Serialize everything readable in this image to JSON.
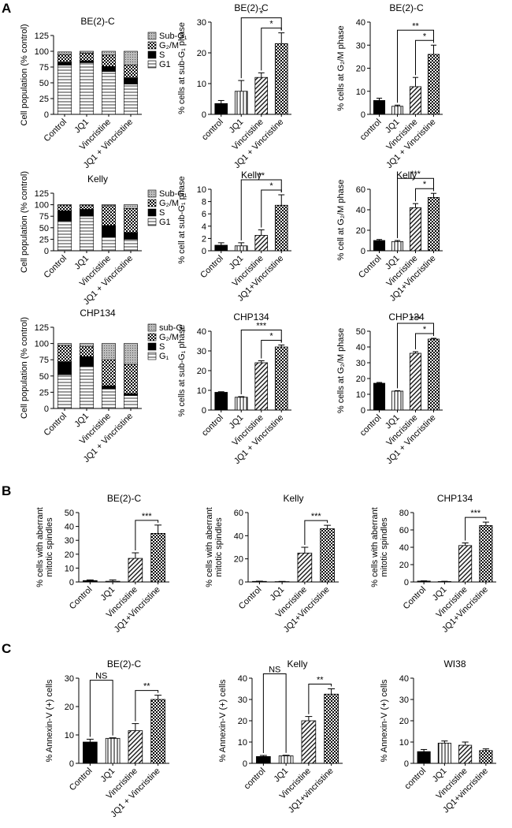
{
  "panel_labels": [
    "A",
    "B",
    "C"
  ],
  "chart_data": [
    {
      "type": "stacked_bar",
      "title": "BE(2)-C",
      "ylabel": [
        "Cell population (% control)"
      ],
      "categories": [
        "Control",
        "JQ1",
        "Vincristine",
        "JQ1 + Vincristine"
      ],
      "series": [
        {
          "name": "G1",
          "values": [
            78,
            82,
            68,
            48
          ]
        },
        {
          "name": "S",
          "values": [
            5,
            3,
            8,
            10
          ]
        },
        {
          "name": "G₂/M",
          "values": [
            12,
            12,
            18,
            20
          ]
        },
        {
          "name": "Sub-G₁",
          "values": [
            4,
            3,
            6,
            22
          ]
        }
      ],
      "ylim": [
        0,
        125
      ],
      "yticks": [
        0,
        25,
        50,
        75,
        100,
        125
      ]
    },
    {
      "type": "bar",
      "title": "BE(2)-C",
      "ylabel": [
        "% cells at sub-G₁ phase"
      ],
      "categories": [
        "control",
        "JQ1",
        "Vincristine",
        "JQ1 + Vincristine"
      ],
      "values": [
        3.5,
        7.5,
        12,
        23
      ],
      "errors": [
        1,
        3.5,
        1.5,
        3.5
      ],
      "ylim": [
        0,
        30
      ],
      "yticks": [
        0,
        10,
        20,
        30
      ],
      "annotations": [
        {
          "label": "*",
          "between": [
            "JQ1",
            "JQ1 + Vincristine"
          ]
        },
        {
          "label": "*",
          "between": [
            "Vincristine",
            "JQ1 + Vincristine"
          ]
        }
      ]
    },
    {
      "type": "bar",
      "title": "BE(2)-C",
      "ylabel": [
        "% cells at G₂/M phase"
      ],
      "categories": [
        "control",
        "JQ1",
        "Vincristine",
        "JQ1 + Vincristine"
      ],
      "values": [
        6,
        3.5,
        12,
        26
      ],
      "errors": [
        1,
        0.5,
        4,
        4
      ],
      "ylim": [
        0,
        40
      ],
      "yticks": [
        0,
        10,
        20,
        30,
        40
      ],
      "annotations": [
        {
          "label": "**",
          "between": [
            "JQ1",
            "JQ1 + Vincristine"
          ]
        },
        {
          "label": "*",
          "between": [
            "Vincristine",
            "JQ1 + Vincristine"
          ]
        }
      ]
    },
    {
      "type": "stacked_bar",
      "title": "Kelly",
      "ylabel": [
        "Cell population (% control)"
      ],
      "categories": [
        "Control",
        "JQ1",
        "Vincristine",
        "JQ1 + Vincristine"
      ],
      "series": [
        {
          "name": "G1",
          "values": [
            65,
            75,
            30,
            25
          ]
        },
        {
          "name": "S",
          "values": [
            22,
            15,
            25,
            15
          ]
        },
        {
          "name": "G₂/M",
          "values": [
            12,
            9,
            43,
            52
          ]
        },
        {
          "name": "Sub-G₁",
          "values": [
            1,
            1,
            2,
            8
          ]
        }
      ],
      "ylim": [
        0,
        125
      ],
      "yticks": [
        0,
        25,
        50,
        75,
        100,
        125
      ]
    },
    {
      "type": "bar",
      "title": "Kelly",
      "ylabel": [
        "% cell at sub-G₁ phase"
      ],
      "categories": [
        "Control",
        "JQ1",
        "Vincristine",
        "JQ1+Vincristine"
      ],
      "values": [
        0.9,
        0.8,
        2.5,
        7.4
      ],
      "errors": [
        0.4,
        0.5,
        0.9,
        1.7
      ],
      "ylim": [
        0,
        10
      ],
      "yticks": [
        0,
        2,
        4,
        6,
        8,
        10
      ],
      "annotations": [
        {
          "label": "**",
          "between": [
            "JQ1",
            "JQ1+Vincristine"
          ]
        },
        {
          "label": "*",
          "between": [
            "Vincristine",
            "JQ1+Vincristine"
          ]
        }
      ]
    },
    {
      "type": "bar",
      "title": "Kelly",
      "ylabel": [
        "% cell at G₂/M phase"
      ],
      "categories": [
        "Control",
        "JQ1",
        "Vincristine",
        "JQ1+Vincristine"
      ],
      "values": [
        10,
        9,
        42,
        52
      ],
      "errors": [
        1,
        1,
        4,
        4
      ],
      "ylim": [
        0,
        60
      ],
      "yticks": [
        0,
        20,
        40,
        60
      ],
      "annotations": [
        {
          "label": "***",
          "between": [
            "JQ1",
            "JQ1+Vincristine"
          ]
        },
        {
          "label": "*",
          "between": [
            "Vincristine",
            "JQ1+Vincristine"
          ]
        }
      ]
    },
    {
      "type": "stacked_bar",
      "title": "CHP134",
      "ylabel": [
        "Cell population (% control)"
      ],
      "categories": [
        "Control",
        "JQ1",
        "Vincristine",
        "JQ1 + Vincristine"
      ],
      "series": [
        {
          "name": "G₁",
          "values": [
            52,
            65,
            30,
            20
          ]
        },
        {
          "name": "S",
          "values": [
            20,
            15,
            5,
            3
          ]
        },
        {
          "name": "G₂/M",
          "values": [
            25,
            15,
            40,
            45
          ]
        },
        {
          "name": "sub-G₁",
          "values": [
            3,
            5,
            25,
            32
          ]
        }
      ],
      "ylim": [
        0,
        125
      ],
      "yticks": [
        0,
        25,
        50,
        75,
        100,
        125
      ]
    },
    {
      "type": "bar",
      "title": "CHP134",
      "ylabel": [
        "% cells at sub-G₁ phase"
      ],
      "categories": [
        "control",
        "JQ1",
        "Vincristine",
        "JQ1 + Vincristine"
      ],
      "values": [
        9,
        6.5,
        24,
        32
      ],
      "errors": [
        0.3,
        0.3,
        1,
        1
      ],
      "ylim": [
        0,
        40
      ],
      "yticks": [
        0,
        10,
        20,
        30,
        40
      ],
      "annotations": [
        {
          "label": "***",
          "between": [
            "JQ1",
            "JQ1 + Vincristine"
          ]
        },
        {
          "label": "*",
          "between": [
            "Vincristine",
            "JQ1 + Vincristine"
          ]
        }
      ]
    },
    {
      "type": "bar",
      "title": "CHP134",
      "ylabel": [
        "% cells at G₂/M phase"
      ],
      "categories": [
        "control",
        "JQ1",
        "Vincristine",
        "JQ1 + Vincristine"
      ],
      "values": [
        17,
        12,
        36,
        45
      ],
      "errors": [
        0.5,
        0.3,
        1,
        0.5
      ],
      "ylim": [
        0,
        50
      ],
      "yticks": [
        0,
        10,
        20,
        30,
        40,
        50
      ],
      "annotations": [
        {
          "label": "***",
          "between": [
            "JQ1",
            "JQ1 + Vincristine"
          ]
        },
        {
          "label": "*",
          "between": [
            "Vincristine",
            "JQ1 + Vincristine"
          ]
        }
      ]
    },
    {
      "type": "bar",
      "title": "BE(2)-C",
      "ylabel": [
        "% cells with aberrant",
        "mitotic spindles"
      ],
      "categories": [
        "Control",
        "JQ1",
        "Vincristine",
        "JQ1+Vincristine"
      ],
      "values": [
        1,
        0.5,
        17,
        35
      ],
      "errors": [
        0.5,
        1,
        4,
        6
      ],
      "ylim": [
        0,
        50
      ],
      "yticks": [
        0,
        10,
        20,
        30,
        40,
        50
      ],
      "annotations": [
        {
          "label": "***",
          "between": [
            "Vincristine",
            "JQ1+Vincristine"
          ]
        }
      ]
    },
    {
      "type": "bar",
      "title": "Kelly",
      "ylabel": [
        "% cells with aberrant",
        "mitotic spindles"
      ],
      "categories": [
        "Control",
        "JQ1",
        "Vincristine",
        "JQ1+Vincristine"
      ],
      "values": [
        0.5,
        0.3,
        25,
        46
      ],
      "errors": [
        0.2,
        0.2,
        5,
        3
      ],
      "ylim": [
        0,
        60
      ],
      "yticks": [
        0,
        20,
        40,
        60
      ],
      "annotations": [
        {
          "label": "***",
          "between": [
            "Vincristine",
            "JQ1+Vincristine"
          ]
        }
      ]
    },
    {
      "type": "bar",
      "title": "CHP134",
      "ylabel": [
        "% cells with aberrant",
        "mitotic spindles"
      ],
      "categories": [
        "Control",
        "JQ1",
        "Vincristine",
        "JQ1+Vincristine"
      ],
      "values": [
        1,
        0.5,
        42,
        65
      ],
      "errors": [
        0.3,
        0.3,
        3,
        4
      ],
      "ylim": [
        0,
        80
      ],
      "yticks": [
        0,
        20,
        40,
        60,
        80
      ],
      "annotations": [
        {
          "label": "***",
          "between": [
            "Vincristine",
            "JQ1+Vincristine"
          ]
        }
      ]
    },
    {
      "type": "bar",
      "title": "BE(2)-C",
      "ylabel": [
        "% Annexin-V (+) cells"
      ],
      "categories": [
        "Control",
        "JQ1",
        "Vincristine",
        "JQ1 + Vincristine"
      ],
      "values": [
        7.5,
        8.8,
        11.5,
        22.5
      ],
      "errors": [
        1,
        0.2,
        2.5,
        1.5
      ],
      "ylim": [
        0,
        30
      ],
      "yticks": [
        0,
        10,
        20,
        30
      ],
      "annotations": [
        {
          "label": "NS",
          "between": [
            "Control",
            "JQ1"
          ]
        },
        {
          "label": "**",
          "between": [
            "Vincristine",
            "JQ1 + Vincristine"
          ]
        }
      ]
    },
    {
      "type": "bar",
      "title": "Kelly",
      "ylabel": [
        "% Annexin-V (+) cells"
      ],
      "categories": [
        "control",
        "JQ1",
        "Vincristine",
        "JQ1+vincristine"
      ],
      "values": [
        3.2,
        3.5,
        20,
        32.5
      ],
      "errors": [
        0.5,
        0.3,
        2,
        2.5
      ],
      "ylim": [
        0,
        40
      ],
      "yticks": [
        0,
        10,
        20,
        30,
        40
      ],
      "annotations": [
        {
          "label": "NS",
          "between": [
            "control",
            "JQ1"
          ]
        },
        {
          "label": "**",
          "between": [
            "Vincristine",
            "JQ1+vincristine"
          ]
        }
      ]
    },
    {
      "type": "bar",
      "title": "WI38",
      "ylabel": [
        "% Annexin-V (+) cells"
      ],
      "categories": [
        "control",
        "JQ1",
        "Vincristine",
        "JQ1+vincristine"
      ],
      "values": [
        5.5,
        9.5,
        8.5,
        6
      ],
      "errors": [
        1,
        1,
        1.5,
        0.8
      ],
      "ylim": [
        0,
        40
      ],
      "yticks": [
        0,
        10,
        20,
        30,
        40
      ]
    }
  ]
}
